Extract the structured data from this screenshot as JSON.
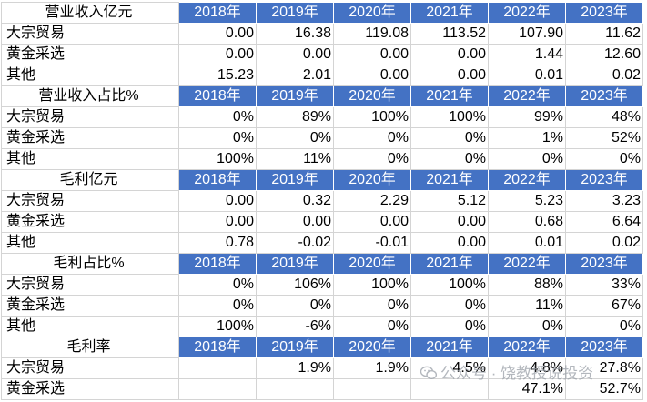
{
  "years": [
    "2018年",
    "2019年",
    "2020年",
    "2021年",
    "2022年",
    "2023年"
  ],
  "sections": [
    {
      "title": "营业收入亿元",
      "rows": [
        {
          "label": "大宗贸易",
          "values": [
            "0.00",
            "16.38",
            "119.08",
            "113.52",
            "107.90",
            "11.62"
          ]
        },
        {
          "label": "黄金采选",
          "values": [
            "0.00",
            "0.00",
            "0.00",
            "0.00",
            "1.44",
            "12.60"
          ]
        },
        {
          "label": "其他",
          "values": [
            "15.23",
            "2.01",
            "0.00",
            "0.00",
            "0.01",
            "0.02"
          ]
        }
      ]
    },
    {
      "title": "营业收入占比%",
      "rows": [
        {
          "label": "大宗贸易",
          "values": [
            "0%",
            "89%",
            "100%",
            "100%",
            "99%",
            "48%"
          ]
        },
        {
          "label": "黄金采选",
          "values": [
            "0%",
            "0%",
            "0%",
            "0%",
            "1%",
            "52%"
          ]
        },
        {
          "label": "其他",
          "values": [
            "100%",
            "11%",
            "0%",
            "0%",
            "0%",
            "0%"
          ]
        }
      ]
    },
    {
      "title": "毛利亿元",
      "rows": [
        {
          "label": "大宗贸易",
          "values": [
            "0.00",
            "0.32",
            "2.29",
            "5.12",
            "5.23",
            "3.23"
          ]
        },
        {
          "label": "黄金采选",
          "values": [
            "0.00",
            "0.00",
            "0.00",
            "0.00",
            "0.68",
            "6.64"
          ]
        },
        {
          "label": "其他",
          "values": [
            "0.78",
            "-0.02",
            "-0.01",
            "0.00",
            "0.01",
            "0.02"
          ]
        }
      ]
    },
    {
      "title": "毛利占比%",
      "rows": [
        {
          "label": "大宗贸易",
          "values": [
            "0%",
            "106%",
            "100%",
            "100%",
            "88%",
            "33%"
          ]
        },
        {
          "label": "黄金采选",
          "values": [
            "0%",
            "0%",
            "0%",
            "0%",
            "11%",
            "67%"
          ]
        },
        {
          "label": "其他",
          "values": [
            "100%",
            "-6%",
            "0%",
            "0%",
            "0%",
            "0%"
          ]
        }
      ]
    },
    {
      "title": "毛利率",
      "rows": [
        {
          "label": "大宗贸易",
          "values": [
            "",
            "1.9%",
            "1.9%",
            "4.5%",
            "4.8%",
            "27.8%"
          ]
        },
        {
          "label": "黄金采选",
          "values": [
            "",
            "",
            "",
            "",
            "47.1%",
            "52.7%"
          ]
        }
      ]
    }
  ],
  "watermark": {
    "text": "公众号 · 饶教授说投资",
    "icon": "wechat-icon"
  }
}
